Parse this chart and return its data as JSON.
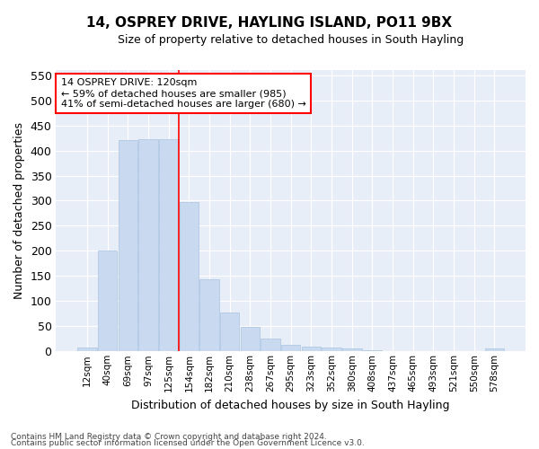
{
  "title": "14, OSPREY DRIVE, HAYLING ISLAND, PO11 9BX",
  "subtitle": "Size of property relative to detached houses in South Hayling",
  "xlabel": "Distribution of detached houses by size in South Hayling",
  "ylabel": "Number of detached properties",
  "categories": [
    "12sqm",
    "40sqm",
    "69sqm",
    "97sqm",
    "125sqm",
    "154sqm",
    "182sqm",
    "210sqm",
    "238sqm",
    "267sqm",
    "295sqm",
    "323sqm",
    "352sqm",
    "380sqm",
    "408sqm",
    "437sqm",
    "465sqm",
    "493sqm",
    "521sqm",
    "550sqm",
    "578sqm"
  ],
  "values": [
    8,
    200,
    420,
    422,
    422,
    298,
    143,
    77,
    48,
    25,
    13,
    10,
    8,
    5,
    2,
    1,
    0,
    0,
    0,
    0,
    5
  ],
  "bar_color": "#c9daf0",
  "bar_edge_color": "#a8c4e0",
  "red_line_x": 4.5,
  "annotation_line1": "14 OSPREY DRIVE: 120sqm",
  "annotation_line2": "← 59% of detached houses are smaller (985)",
  "annotation_line3": "41% of semi-detached houses are larger (680) →",
  "ylim": [
    0,
    560
  ],
  "yticks": [
    0,
    50,
    100,
    150,
    200,
    250,
    300,
    350,
    400,
    450,
    500,
    550
  ],
  "bg_color": "#e8eef8",
  "footer1": "Contains HM Land Registry data © Crown copyright and database right 2024.",
  "footer2": "Contains public sector information licensed under the Open Government Licence v3.0."
}
